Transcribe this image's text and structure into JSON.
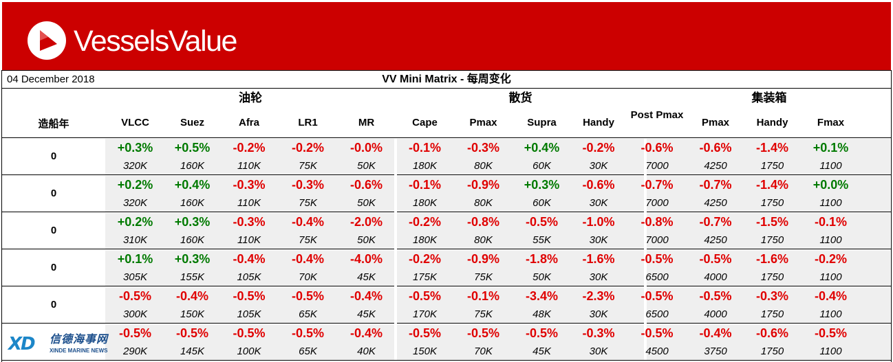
{
  "brand": {
    "name": "VesselsValue",
    "logo_icon": "vv-triangle-logo"
  },
  "header": {
    "date": "04 December 2018",
    "title": "VV Mini Matrix - 每周变化"
  },
  "year_header": "造船年",
  "groups": [
    {
      "label": "油轮",
      "columns": [
        "VLCC",
        "Suez",
        "Afra",
        "LR1",
        "MR"
      ]
    },
    {
      "label": "散货",
      "columns": [
        "Cape",
        "Pmax",
        "Supra",
        "Handy"
      ]
    },
    {
      "label": "集装箱",
      "columns": [
        "Post Pmax",
        "Pmax",
        "Handy",
        "Fmax"
      ]
    }
  ],
  "colors": {
    "banner": "#cc0000",
    "positive": "#007a00",
    "negative": "#e00000",
    "cell_bg": "#efefef"
  },
  "rows": [
    {
      "year": "0",
      "changes": [
        "+0.3%",
        "+0.5%",
        "-0.2%",
        "-0.2%",
        "-0.0%",
        "-0.1%",
        "-0.3%",
        "+0.4%",
        "-0.2%",
        "-0.6%",
        "-0.6%",
        "-1.4%",
        "+0.1%"
      ],
      "sizes": [
        "320K",
        "160K",
        "110K",
        "75K",
        "50K",
        "180K",
        "80K",
        "60K",
        "30K",
        "7000",
        "4250",
        "1750",
        "1100"
      ]
    },
    {
      "year": "0",
      "changes": [
        "+0.2%",
        "+0.4%",
        "-0.3%",
        "-0.3%",
        "-0.6%",
        "-0.1%",
        "-0.9%",
        "+0.3%",
        "-0.6%",
        "-0.7%",
        "-0.7%",
        "-1.4%",
        "+0.0%"
      ],
      "sizes": [
        "320K",
        "160K",
        "110K",
        "75K",
        "50K",
        "180K",
        "80K",
        "60K",
        "30K",
        "7000",
        "4250",
        "1750",
        "1100"
      ]
    },
    {
      "year": "0",
      "changes": [
        "+0.2%",
        "+0.3%",
        "-0.3%",
        "-0.4%",
        "-2.0%",
        "-0.2%",
        "-0.8%",
        "-0.5%",
        "-1.0%",
        "-0.8%",
        "-0.7%",
        "-1.5%",
        "-0.1%"
      ],
      "sizes": [
        "310K",
        "160K",
        "110K",
        "75K",
        "50K",
        "180K",
        "80K",
        "55K",
        "30K",
        "7000",
        "4250",
        "1750",
        "1100"
      ]
    },
    {
      "year": "0",
      "changes": [
        "+0.1%",
        "+0.3%",
        "-0.4%",
        "-0.4%",
        "-4.0%",
        "-0.2%",
        "-0.9%",
        "-1.8%",
        "-1.6%",
        "-0.5%",
        "-0.5%",
        "-1.6%",
        "-0.2%"
      ],
      "sizes": [
        "305K",
        "155K",
        "105K",
        "70K",
        "45K",
        "175K",
        "75K",
        "50K",
        "30K",
        "6500",
        "4000",
        "1750",
        "1100"
      ]
    },
    {
      "year": "0",
      "changes": [
        "-0.5%",
        "-0.4%",
        "-0.5%",
        "-0.5%",
        "-0.4%",
        "-0.5%",
        "-0.1%",
        "-3.4%",
        "-2.3%",
        "-0.5%",
        "-0.5%",
        "-0.3%",
        "-0.4%"
      ],
      "sizes": [
        "300K",
        "150K",
        "105K",
        "65K",
        "45K",
        "170K",
        "75K",
        "48K",
        "30K",
        "6500",
        "4000",
        "1750",
        "1100"
      ]
    },
    {
      "year": "",
      "changes": [
        "-0.5%",
        "-0.5%",
        "-0.5%",
        "-0.5%",
        "-0.4%",
        "-0.5%",
        "-0.5%",
        "-0.5%",
        "-0.3%",
        "-0.5%",
        "-0.4%",
        "-0.6%",
        "-0.5%"
      ],
      "sizes": [
        "290K",
        "145K",
        "100K",
        "65K",
        "40K",
        "150K",
        "70K",
        "45K",
        "30K",
        "4500",
        "3750",
        "1750",
        "1100"
      ]
    }
  ],
  "watermark": {
    "mark": "XD",
    "chinese": "信德海事网",
    "english": "XINDE MARINE NEWS"
  }
}
